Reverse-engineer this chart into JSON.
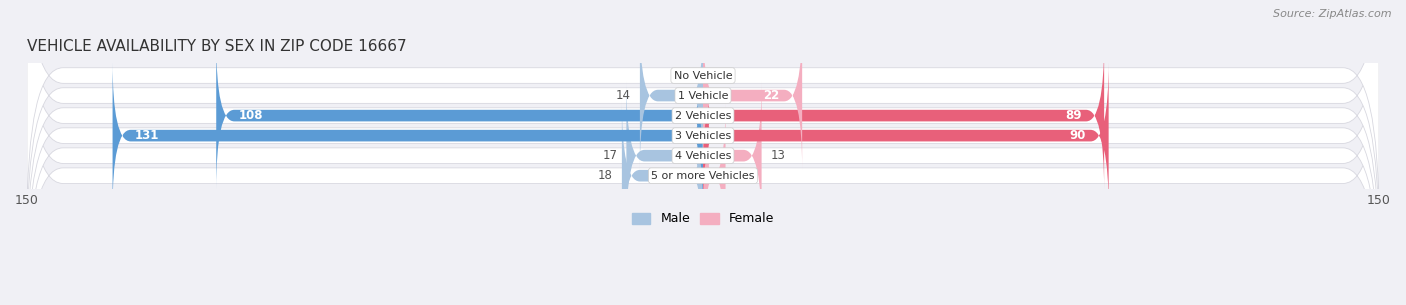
{
  "title": "VEHICLE AVAILABILITY BY SEX IN ZIP CODE 16667",
  "source": "Source: ZipAtlas.com",
  "categories": [
    "No Vehicle",
    "1 Vehicle",
    "2 Vehicles",
    "3 Vehicles",
    "4 Vehicles",
    "5 or more Vehicles"
  ],
  "male_values": [
    0,
    14,
    108,
    131,
    17,
    18
  ],
  "female_values": [
    0,
    22,
    89,
    90,
    13,
    5
  ],
  "male_color_light": "#a8c4e0",
  "male_color_dark": "#5b9bd5",
  "female_color_light": "#f4aec0",
  "female_color_dark": "#e8607a",
  "xlim": 150,
  "bar_height": 0.58,
  "bg_color": "#f0f0f5",
  "row_bg_color": "#f5f5f8",
  "title_fontsize": 11,
  "source_fontsize": 8,
  "legend_fontsize": 9,
  "category_fontsize": 8,
  "value_fontsize": 8.5
}
